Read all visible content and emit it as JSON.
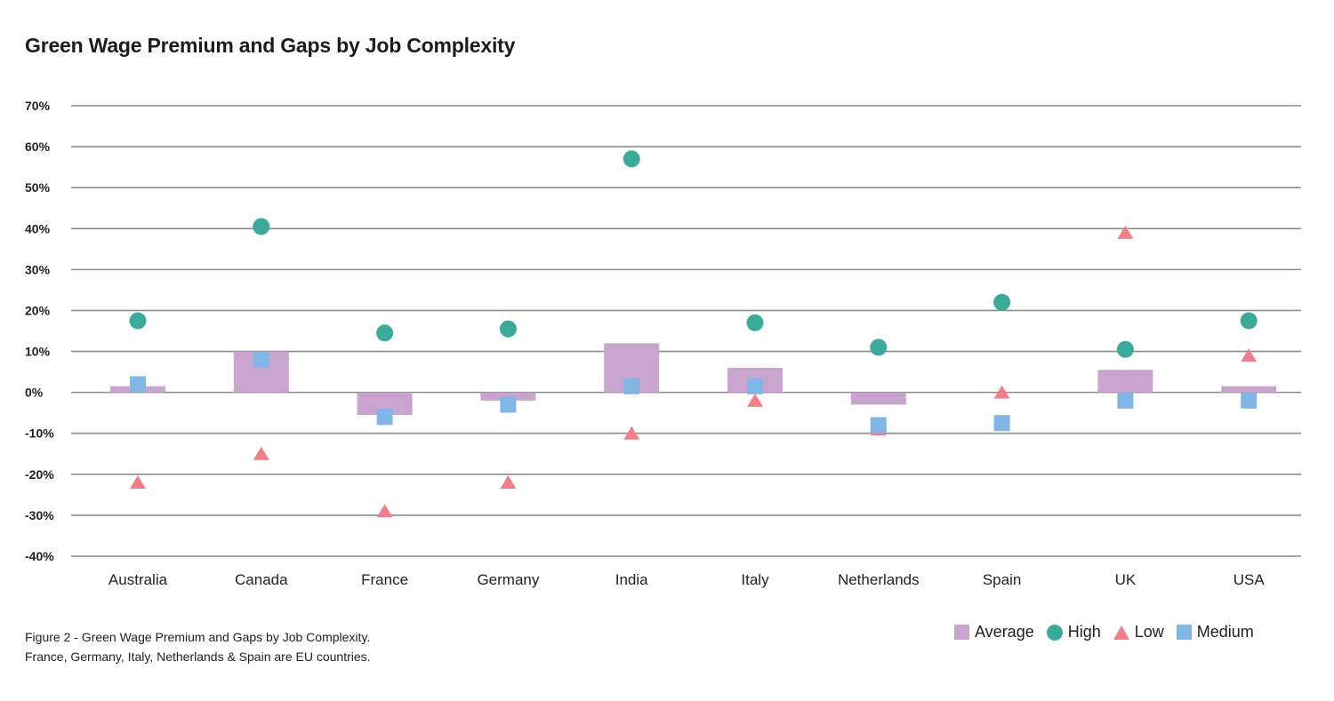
{
  "title": "Green Wage Premium and Gaps by Job Complexity",
  "caption": [
    "Figure 2 - Green Wage Premium and Gaps by Job Complexity.",
    "France, Germany, Italy, Netherlands & Spain are EU countries."
  ],
  "colors": {
    "average": "#c9a4cf",
    "high": "#3aab9b",
    "low": "#f27f88",
    "medium": "#7fb6e6",
    "grid": "#8c8c8c"
  },
  "chart_data": {
    "type": "scatter",
    "title": "Green Wage Premium and Gaps by Job Complexity",
    "xlabel": "",
    "ylabel": "",
    "categories": [
      "Australia",
      "Canada",
      "France",
      "Germany",
      "India",
      "Italy",
      "Netherlands",
      "Spain",
      "UK",
      "USA"
    ],
    "ylim": [
      -40,
      70
    ],
    "yticks": [
      70,
      60,
      50,
      40,
      30,
      20,
      10,
      0,
      -10,
      -20,
      -30,
      -40
    ],
    "ytick_labels": [
      "70%",
      "60%",
      "50%",
      "40%",
      "30%",
      "20%",
      "10%",
      "0%",
      "-10%",
      "-20%",
      "-30%",
      "-40%"
    ],
    "grid": true,
    "legend_position": "bottom-right",
    "series": [
      {
        "name": "Average",
        "marker": "bar",
        "values": [
          1.5,
          10,
          -5.5,
          -2,
          12,
          6,
          -3,
          0,
          5.5,
          1.5
        ]
      },
      {
        "name": "High",
        "marker": "circle",
        "values": [
          17.5,
          40.5,
          14.5,
          15.5,
          57,
          17,
          11,
          22,
          10.5,
          17.5
        ]
      },
      {
        "name": "Low",
        "marker": "triangle",
        "values": [
          -22,
          -15,
          -29,
          -22,
          -10,
          -2,
          -9,
          0,
          39,
          9
        ]
      },
      {
        "name": "Medium",
        "marker": "square",
        "values": [
          2,
          8,
          -6,
          -3,
          1.5,
          1.5,
          -8,
          -7.5,
          -2,
          -2
        ]
      }
    ]
  }
}
